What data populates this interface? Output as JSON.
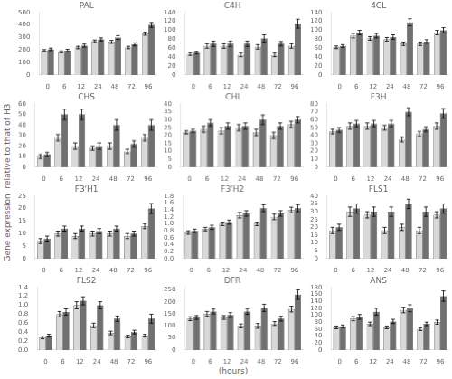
{
  "ylabel": "Gene expression  relative to that of H3",
  "xlabel": "(hours)",
  "chart_data": [
    {
      "type": "bar",
      "title": "PAL",
      "categories": [
        "0",
        "6",
        "12",
        "24",
        "48",
        "72",
        "96"
      ],
      "grid": false,
      "ylim": [
        0,
        500
      ],
      "yticks": [
        0,
        100,
        200,
        300,
        400,
        500
      ],
      "series": [
        {
          "color": "#d8d8d8",
          "values": [
            195,
            185,
            220,
            270,
            265,
            220,
            330
          ],
          "errors": [
            8,
            8,
            10,
            10,
            12,
            10,
            12
          ]
        },
        {
          "color": "#707070",
          "values": [
            205,
            195,
            235,
            285,
            300,
            245,
            400
          ],
          "errors": [
            10,
            10,
            12,
            12,
            15,
            12,
            20
          ]
        }
      ]
    },
    {
      "type": "bar",
      "title": "C4H",
      "categories": [
        "0",
        "6",
        "12",
        "24",
        "48",
        "72",
        "96"
      ],
      "grid": false,
      "ylim": [
        0,
        140
      ],
      "yticks": [
        0,
        20,
        40,
        60,
        80,
        100,
        120,
        140
      ],
      "series": [
        {
          "color": "#d8d8d8",
          "values": [
            47,
            65,
            65,
            45,
            63,
            45,
            65
          ],
          "errors": [
            3,
            5,
            5,
            4,
            5,
            4,
            5
          ]
        },
        {
          "color": "#707070",
          "values": [
            50,
            70,
            70,
            70,
            82,
            70,
            115
          ],
          "errors": [
            3,
            6,
            6,
            6,
            8,
            5,
            10
          ]
        }
      ]
    },
    {
      "type": "bar",
      "title": "4CL",
      "categories": [
        "0",
        "6",
        "12",
        "24",
        "48",
        "72",
        "96"
      ],
      "grid": false,
      "ylim": [
        0,
        140
      ],
      "yticks": [
        0,
        20,
        40,
        60,
        80,
        100,
        120,
        140
      ],
      "series": [
        {
          "color": "#d8d8d8",
          "values": [
            62,
            88,
            82,
            80,
            70,
            70,
            95
          ],
          "errors": [
            3,
            5,
            4,
            4,
            4,
            4,
            5
          ]
        },
        {
          "color": "#707070",
          "values": [
            65,
            95,
            88,
            85,
            118,
            75,
            100
          ],
          "errors": [
            3,
            5,
            5,
            5,
            8,
            4,
            6
          ]
        }
      ]
    },
    {
      "type": "bar",
      "title": "CHS",
      "categories": [
        "0",
        "6",
        "12",
        "24",
        "48",
        "72",
        "96"
      ],
      "grid": false,
      "ylim": [
        0,
        60
      ],
      "yticks": [
        0,
        10,
        20,
        30,
        40,
        50,
        60
      ],
      "series": [
        {
          "color": "#d8d8d8",
          "values": [
            10,
            28,
            20,
            18,
            20,
            15,
            28
          ],
          "errors": [
            2,
            3,
            3,
            2,
            3,
            2,
            3
          ]
        },
        {
          "color": "#707070",
          "values": [
            12,
            50,
            50,
            20,
            40,
            22,
            40
          ],
          "errors": [
            2,
            5,
            5,
            3,
            5,
            3,
            5
          ]
        }
      ]
    },
    {
      "type": "bar",
      "title": "CHI",
      "categories": [
        "0",
        "6",
        "12",
        "24",
        "48",
        "72",
        "96"
      ],
      "grid": false,
      "ylim": [
        0,
        40
      ],
      "yticks": [
        0,
        5,
        10,
        15,
        20,
        25,
        30,
        35,
        40
      ],
      "series": [
        {
          "color": "#d8d8d8",
          "values": [
            22,
            24,
            23,
            25,
            22,
            20,
            27
          ],
          "errors": [
            1,
            2,
            2,
            2,
            2,
            2,
            2
          ]
        },
        {
          "color": "#707070",
          "values": [
            23,
            28,
            26,
            26,
            30,
            26,
            30
          ],
          "errors": [
            1,
            2,
            2,
            2,
            3,
            2,
            2
          ]
        }
      ]
    },
    {
      "type": "bar",
      "title": "F3H",
      "categories": [
        "0",
        "6",
        "12",
        "24",
        "48",
        "72",
        "96"
      ],
      "grid": false,
      "ylim": [
        0,
        80
      ],
      "yticks": [
        0,
        10,
        20,
        30,
        40,
        50,
        60,
        70,
        80
      ],
      "series": [
        {
          "color": "#d8d8d8",
          "values": [
            45,
            52,
            52,
            50,
            35,
            42,
            52
          ],
          "errors": [
            3,
            4,
            4,
            3,
            3,
            3,
            4
          ]
        },
        {
          "color": "#707070",
          "values": [
            47,
            55,
            55,
            55,
            70,
            48,
            68
          ],
          "errors": [
            3,
            4,
            4,
            4,
            5,
            3,
            6
          ]
        }
      ]
    },
    {
      "type": "bar",
      "title": "F3'H1",
      "categories": [
        "0",
        "6",
        "12",
        "24",
        "48",
        "72",
        "96"
      ],
      "grid": false,
      "ylim": [
        0,
        25
      ],
      "yticks": [
        0,
        5,
        10,
        15,
        20,
        25
      ],
      "series": [
        {
          "color": "#d8d8d8",
          "values": [
            7,
            10,
            9,
            10,
            10,
            9,
            13
          ],
          "errors": [
            1,
            1,
            1,
            1,
            1,
            1,
            1
          ]
        },
        {
          "color": "#707070",
          "values": [
            8,
            12,
            12,
            11,
            12,
            10,
            20
          ],
          "errors": [
            1,
            1,
            1,
            1,
            1,
            1,
            2
          ]
        }
      ]
    },
    {
      "type": "bar",
      "title": "F3'H2",
      "categories": [
        "0",
        "6",
        "12",
        "24",
        "48",
        "72",
        "96"
      ],
      "grid": false,
      "ylim": [
        0,
        1.8
      ],
      "yticks": [
        {
          "value": 0,
          "label": "0.0"
        },
        0.2,
        0.4,
        0.6,
        0.8,
        {
          "value": 1,
          "label": "1.0"
        },
        1.2,
        1.4,
        1.6,
        1.8
      ],
      "series": [
        {
          "color": "#d8d8d8",
          "values": [
            0.75,
            0.85,
            1.0,
            1.25,
            1.0,
            1.2,
            1.4
          ],
          "errors": [
            0.05,
            0.05,
            0.05,
            0.08,
            0.05,
            0.08,
            0.08
          ]
        },
        {
          "color": "#707070",
          "values": [
            0.8,
            0.9,
            1.05,
            1.3,
            1.45,
            1.3,
            1.45
          ],
          "errors": [
            0.05,
            0.06,
            0.06,
            0.08,
            0.1,
            0.08,
            0.1
          ]
        }
      ]
    },
    {
      "type": "bar",
      "title": "FLS1",
      "categories": [
        "0",
        "6",
        "12",
        "24",
        "48",
        "72",
        "96"
      ],
      "grid": false,
      "ylim": [
        0,
        40
      ],
      "yticks": [
        0,
        5,
        10,
        15,
        20,
        25,
        30,
        35,
        40
      ],
      "series": [
        {
          "color": "#d8d8d8",
          "values": [
            18,
            30,
            28,
            18,
            20,
            18,
            28
          ],
          "errors": [
            2,
            3,
            2,
            2,
            2,
            2,
            2
          ]
        },
        {
          "color": "#707070",
          "values": [
            20,
            32,
            30,
            30,
            35,
            30,
            32
          ],
          "errors": [
            2,
            3,
            3,
            3,
            3,
            3,
            3
          ]
        }
      ]
    },
    {
      "type": "bar",
      "title": "FLS2",
      "categories": [
        "0",
        "6",
        "12",
        "24",
        "48",
        "72",
        "96"
      ],
      "grid": false,
      "ylim": [
        0,
        1.4
      ],
      "yticks": [
        {
          "value": 0,
          "label": "0.0"
        },
        0.2,
        0.4,
        0.6,
        0.8,
        {
          "value": 1,
          "label": "1.0"
        },
        1.2,
        1.4
      ],
      "series": [
        {
          "color": "#d8d8d8",
          "values": [
            0.28,
            0.8,
            1.0,
            0.55,
            0.38,
            0.3,
            0.32
          ],
          "errors": [
            0.03,
            0.06,
            0.08,
            0.05,
            0.04,
            0.03,
            0.03
          ]
        },
        {
          "color": "#707070",
          "values": [
            0.32,
            0.85,
            1.1,
            1.0,
            0.7,
            0.4,
            0.7
          ],
          "errors": [
            0.03,
            0.07,
            0.09,
            0.08,
            0.06,
            0.04,
            0.1
          ]
        }
      ]
    },
    {
      "type": "bar",
      "title": "DFR",
      "categories": [
        "0",
        "6",
        "12",
        "24",
        "48",
        "72",
        "96"
      ],
      "grid": false,
      "ylim": [
        0,
        260
      ],
      "yticks": [
        0,
        50,
        100,
        150,
        200,
        250
      ],
      "series": [
        {
          "color": "#d8d8d8",
          "values": [
            130,
            150,
            135,
            100,
            100,
            110,
            170
          ],
          "errors": [
            8,
            10,
            8,
            8,
            10,
            8,
            12
          ]
        },
        {
          "color": "#707070",
          "values": [
            135,
            160,
            145,
            160,
            175,
            130,
            230
          ],
          "errors": [
            8,
            10,
            10,
            12,
            15,
            10,
            20
          ]
        }
      ]
    },
    {
      "type": "bar",
      "title": "ANS",
      "categories": [
        "0",
        "6",
        "12",
        "24",
        "48",
        "72",
        "96"
      ],
      "grid": false,
      "ylim": [
        0,
        180
      ],
      "yticks": [
        0,
        20,
        40,
        60,
        80,
        100,
        120,
        140,
        160,
        180
      ],
      "series": [
        {
          "color": "#d8d8d8",
          "values": [
            65,
            90,
            75,
            65,
            115,
            60,
            80
          ],
          "errors": [
            4,
            6,
            5,
            4,
            8,
            4,
            6
          ]
        },
        {
          "color": "#707070",
          "values": [
            68,
            95,
            110,
            82,
            120,
            75,
            155
          ],
          "errors": [
            4,
            7,
            10,
            6,
            10,
            5,
            15
          ]
        }
      ]
    }
  ]
}
